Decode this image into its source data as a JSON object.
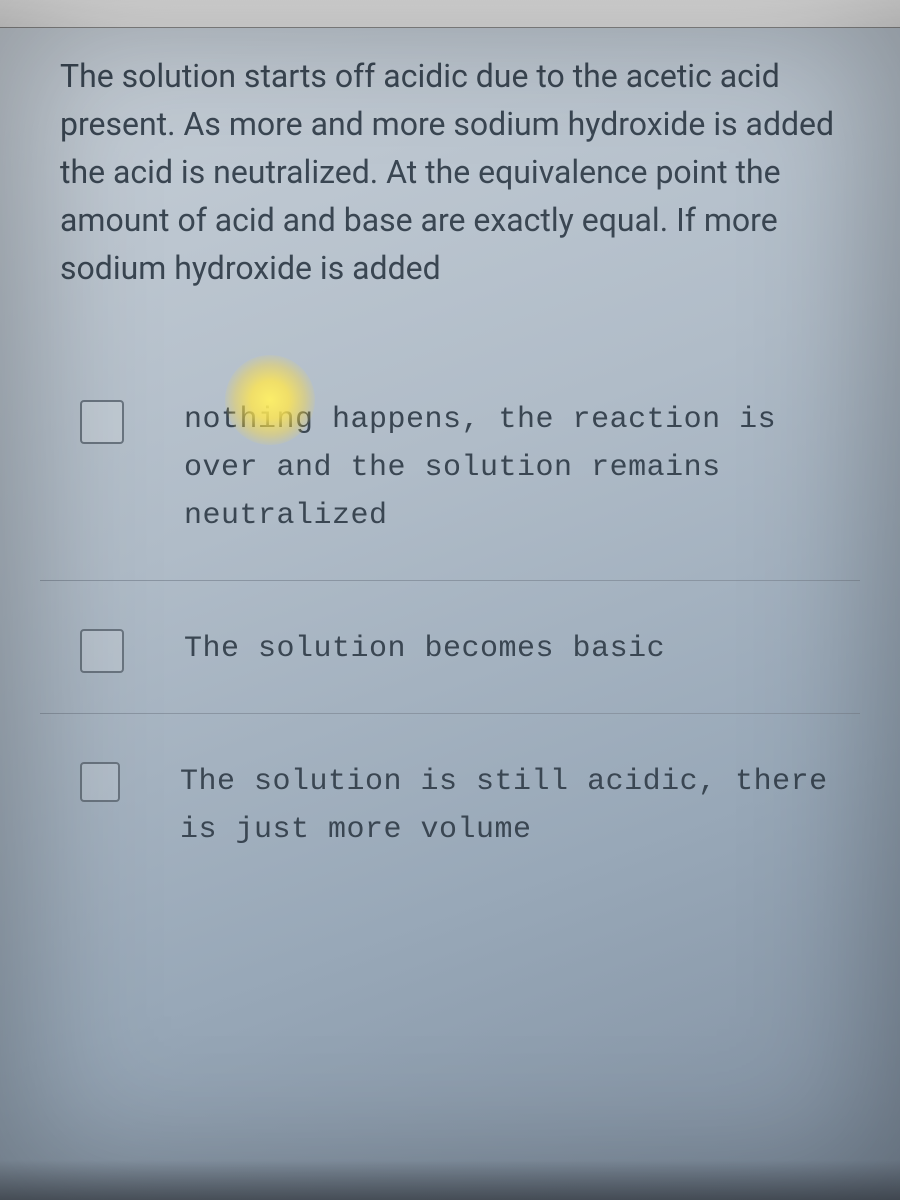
{
  "question": {
    "text": "The solution starts off acidic due to the acetic acid present. As more and more sodium hydroxide is added the acid is neutralized. At the equivalence point the amount of acid and base are exactly equal. If more sodium hydroxide is added",
    "font_size": 32,
    "color": "#3a4652"
  },
  "options": [
    {
      "text": "nothing happens, the reaction is over and the solution remains neutralized",
      "checked": false
    },
    {
      "text": "The solution becomes basic",
      "checked": false
    },
    {
      "text": "The solution is still acidic, there is just more volume",
      "checked": false
    }
  ],
  "styling": {
    "option_font_family": "Courier New",
    "option_font_size": 30,
    "option_color": "#3a4652",
    "checkbox_border_color": "#6a7580",
    "divider_color": "#8a95a2",
    "background_gradient_top": "#c8d0d8",
    "background_gradient_bottom": "#808fa0",
    "cursor_glow_color": "#fff064"
  }
}
